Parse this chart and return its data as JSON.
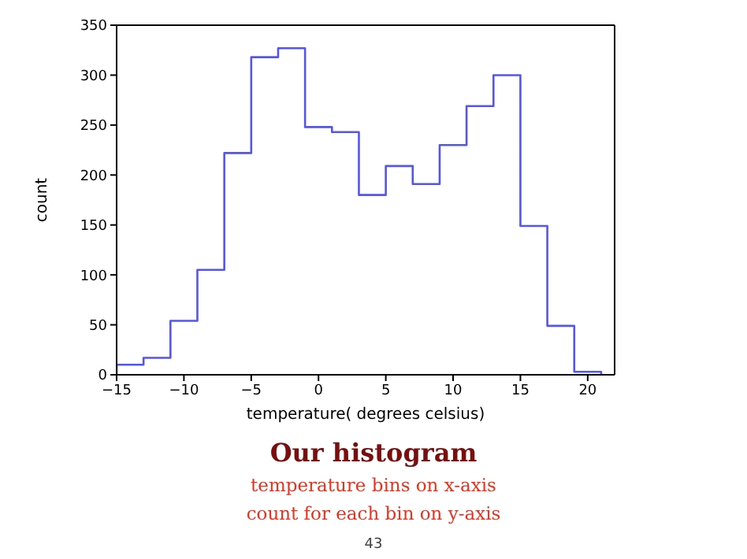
{
  "chart_data": {
    "type": "histogram",
    "title": "Our histogram",
    "subtitle": "temperature bins on x-axis\ncount for each bin on y-axis",
    "annotations": [
      "43"
    ],
    "xlabel": "temperature( degrees celsius)",
    "ylabel": "count",
    "color": "#5555ee",
    "bins": [
      -15,
      -13,
      -11,
      -9,
      -7,
      -5,
      -3,
      -1,
      1,
      3,
      5,
      7,
      9,
      11,
      13,
      15,
      17,
      19,
      21
    ],
    "values": [
      10,
      17,
      54,
      105,
      222,
      318,
      327,
      248,
      243,
      180,
      209,
      191,
      230,
      269,
      300,
      149,
      49,
      3
    ],
    "xlim": [
      -15,
      22
    ],
    "xticks": [
      -15,
      -10,
      -5,
      0,
      5,
      10,
      15,
      20
    ],
    "ylim": [
      0,
      350
    ],
    "yticks": [
      0,
      50,
      100,
      150,
      200,
      250,
      300,
      350
    ],
    "grid": false,
    "legend": false
  }
}
